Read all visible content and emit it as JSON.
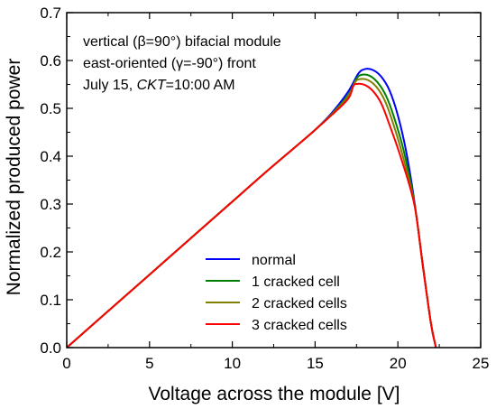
{
  "chart_data": {
    "type": "line",
    "title": "",
    "xlabel": "Voltage across the module [V]",
    "ylabel": "Normalized produced power",
    "xlim": [
      0,
      25
    ],
    "ylim": [
      0,
      0.7
    ],
    "xticks": [
      "0",
      "5",
      "10",
      "15",
      "20",
      "25"
    ],
    "yticks": [
      "0.0",
      "0.1",
      "0.2",
      "0.3",
      "0.4",
      "0.5",
      "0.6",
      "0.7"
    ],
    "grid": false,
    "legend_position": "bottom-center",
    "annotations": [
      {
        "pre": "vertical (",
        "ital": "",
        "mid": "β=90°) bifacial module"
      },
      {
        "pre": "east-oriented (",
        "ital": "",
        "mid": "γ=-90°) front"
      },
      {
        "pre": "July 15, ",
        "ital": "CKT",
        "mid": "=10:00 AM"
      }
    ],
    "series": [
      {
        "name": "normal",
        "color": "#0000ff",
        "x": [
          0,
          2,
          4,
          6,
          8,
          10,
          12,
          14,
          15,
          16,
          17,
          17.6,
          18.0,
          18.5,
          19.0,
          19.5,
          20.0,
          20.5,
          21.0,
          21.5,
          22.0,
          22.3
        ],
        "y": [
          0,
          0.061,
          0.122,
          0.183,
          0.244,
          0.305,
          0.366,
          0.425,
          0.455,
          0.49,
          0.535,
          0.572,
          0.582,
          0.58,
          0.566,
          0.537,
          0.485,
          0.41,
          0.305,
          0.175,
          0.05,
          0
        ]
      },
      {
        "name": "1 cracked cell",
        "color": "#008000",
        "x": [
          0,
          2,
          4,
          6,
          8,
          10,
          12,
          14,
          15,
          16,
          17,
          17.5,
          17.8,
          18.3,
          18.8,
          19.3,
          19.8,
          20.4,
          21.0,
          21.5,
          22.0,
          22.3
        ],
        "y": [
          0,
          0.061,
          0.122,
          0.183,
          0.244,
          0.305,
          0.366,
          0.425,
          0.455,
          0.488,
          0.528,
          0.562,
          0.57,
          0.568,
          0.553,
          0.525,
          0.478,
          0.405,
          0.302,
          0.174,
          0.05,
          0
        ]
      },
      {
        "name": "2 cracked cells",
        "color": "#808000",
        "x": [
          0,
          2,
          4,
          6,
          8,
          10,
          12,
          14,
          15,
          16,
          17,
          17.4,
          17.7,
          18.2,
          18.7,
          19.2,
          19.7,
          20.3,
          21.0,
          21.5,
          22.0,
          22.3
        ],
        "y": [
          0,
          0.061,
          0.122,
          0.183,
          0.244,
          0.305,
          0.366,
          0.425,
          0.455,
          0.487,
          0.525,
          0.554,
          0.561,
          0.559,
          0.545,
          0.517,
          0.47,
          0.4,
          0.3,
          0.173,
          0.05,
          0
        ]
      },
      {
        "name": "3 cracked cells",
        "color": "#ff0000",
        "x": [
          0,
          2,
          4,
          6,
          8,
          10,
          12,
          14,
          15,
          16,
          17,
          17.3,
          17.5,
          18.0,
          18.5,
          19.0,
          19.5,
          20.2,
          21.0,
          21.5,
          22.0,
          22.3
        ],
        "y": [
          0,
          0.061,
          0.122,
          0.183,
          0.244,
          0.305,
          0.366,
          0.425,
          0.455,
          0.486,
          0.52,
          0.546,
          0.551,
          0.549,
          0.536,
          0.51,
          0.465,
          0.395,
          0.298,
          0.172,
          0.05,
          0
        ]
      }
    ]
  }
}
